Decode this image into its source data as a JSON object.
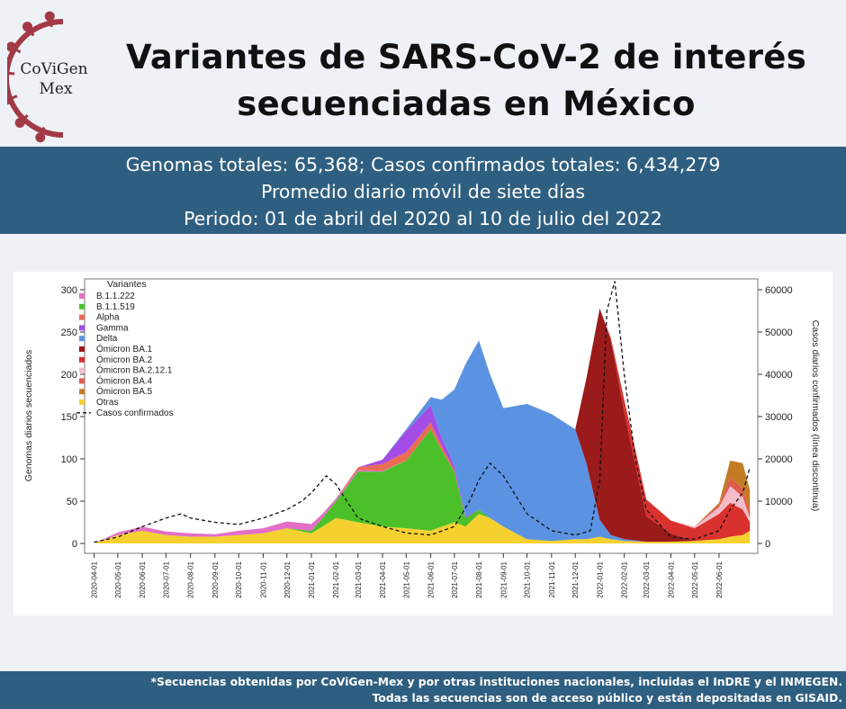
{
  "logo": {
    "line1": "CoViGen",
    "line2": "Mex",
    "accent": "#a23a45"
  },
  "header": {
    "title_line1": "Variantes de SARS-CoV-2 de interés",
    "title_line2": "secuenciadas en México"
  },
  "band": {
    "line1": "Genomas totales: 65,368; Casos confirmados totales: 6,434,279",
    "line2": "Promedio diario móvil de siete días",
    "line3": "Periodo: 01 de abril del 2020 al 10 de julio del 2022"
  },
  "footer": {
    "line1": "*Secuencias obtenidas por CoViGen-Mex y por otras instituciones nacionales, incluidas el InDRE y el INMEGEN.",
    "line2": "Todas las secuencias son de acceso público y están depositadas en GISAID."
  },
  "chart_data": {
    "type": "area",
    "ylabel": "Genomas diarios secuenciados",
    "y2label": "Casos diarios confirmados (línea discontinua)",
    "ylim": [
      0,
      300
    ],
    "y2lim": [
      0,
      60000
    ],
    "yticks": [
      0,
      50,
      100,
      150,
      200,
      250,
      300
    ],
    "y2ticks": [
      0,
      10000,
      20000,
      30000,
      40000,
      50000,
      60000
    ],
    "y2ticklabels": [
      "0",
      "10000",
      "20000",
      "30000",
      "40000",
      "50000",
      "60000"
    ],
    "legend_title": "Variantes",
    "legend_position": "top-left",
    "xticks": [
      "2020-04-01",
      "2020-05-01",
      "2020-06-01",
      "2020-07-01",
      "2020-08-01",
      "2020-09-01",
      "2020-10-01",
      "2020-11-01",
      "2020-12-01",
      "2021-01-01",
      "2021-02-01",
      "2021-03-01",
      "2021-04-01",
      "2021-05-01",
      "2021-06-01",
      "2021-07-01",
      "2021-08-01",
      "2021-09-01",
      "2021-10-01",
      "2021-11-01",
      "2021-12-01",
      "2022-01-01",
      "2022-02-01",
      "2022-03-01",
      "2022-04-01",
      "2022-05-01",
      "2022-06-01"
    ],
    "x": [
      "2020-04-01",
      "2020-05-01",
      "2020-06-01",
      "2020-07-01",
      "2020-08-01",
      "2020-09-01",
      "2020-10-01",
      "2020-11-01",
      "2020-12-01",
      "2021-01-01",
      "2021-01-15",
      "2021-02-01",
      "2021-03-01",
      "2021-04-01",
      "2021-05-01",
      "2021-06-01",
      "2021-06-15",
      "2021-07-01",
      "2021-07-15",
      "2021-08-01",
      "2021-08-15",
      "2021-09-01",
      "2021-10-01",
      "2021-11-01",
      "2021-12-01",
      "2021-12-15",
      "2022-01-01",
      "2022-01-15",
      "2022-02-01",
      "2022-03-01",
      "2022-04-01",
      "2022-05-01",
      "2022-06-01",
      "2022-06-15",
      "2022-07-01",
      "2022-07-10"
    ],
    "series": [
      {
        "name": "Otras",
        "color": "#f5d130",
        "values": [
          0,
          10,
          15,
          10,
          8,
          8,
          10,
          12,
          18,
          12,
          20,
          30,
          25,
          20,
          18,
          15,
          20,
          25,
          20,
          35,
          30,
          20,
          5,
          3,
          5,
          5,
          8,
          5,
          3,
          2,
          2,
          3,
          5,
          8,
          10,
          15
        ]
      },
      {
        "name": "B.1.1.519",
        "color": "#4cc02a",
        "values": [
          0,
          0,
          0,
          0,
          0,
          0,
          0,
          0,
          0,
          3,
          10,
          20,
          60,
          65,
          80,
          120,
          90,
          60,
          10,
          5,
          0,
          0,
          0,
          0,
          0,
          0,
          0,
          0,
          0,
          0,
          0,
          0,
          0,
          0,
          0,
          0
        ]
      },
      {
        "name": "B.1.1.222",
        "color": "#e26fc5",
        "values": [
          0,
          3,
          5,
          4,
          4,
          3,
          5,
          6,
          8,
          8,
          5,
          3,
          2,
          1,
          0,
          0,
          0,
          0,
          0,
          0,
          0,
          0,
          0,
          0,
          0,
          0,
          0,
          0,
          0,
          0,
          0,
          0,
          0,
          0,
          0,
          0
        ]
      },
      {
        "name": "Alpha",
        "color": "#ea6c55",
        "values": [
          0,
          0,
          0,
          0,
          0,
          0,
          0,
          0,
          0,
          0,
          0,
          0,
          3,
          8,
          10,
          8,
          5,
          2,
          0,
          0,
          0,
          0,
          0,
          0,
          0,
          0,
          0,
          0,
          0,
          0,
          0,
          0,
          0,
          0,
          0,
          0
        ]
      },
      {
        "name": "Gamma",
        "color": "#a44ce6",
        "values": [
          0,
          0,
          0,
          0,
          0,
          0,
          0,
          0,
          0,
          0,
          0,
          0,
          0,
          5,
          25,
          20,
          10,
          5,
          2,
          0,
          0,
          0,
          0,
          0,
          0,
          0,
          0,
          0,
          0,
          0,
          0,
          0,
          0,
          0,
          0,
          0
        ]
      },
      {
        "name": "Delta",
        "color": "#5b93e2",
        "values": [
          0,
          0,
          0,
          0,
          0,
          0,
          0,
          0,
          0,
          0,
          0,
          0,
          0,
          0,
          2,
          10,
          45,
          90,
          180,
          200,
          170,
          140,
          160,
          150,
          130,
          90,
          20,
          5,
          2,
          0,
          0,
          0,
          0,
          0,
          0,
          0
        ]
      },
      {
        "name": "Ómicron BA.1",
        "color": "#9b1b1b",
        "values": [
          0,
          0,
          0,
          0,
          0,
          0,
          0,
          0,
          0,
          0,
          0,
          0,
          0,
          0,
          0,
          0,
          0,
          0,
          0,
          0,
          0,
          0,
          0,
          0,
          0,
          100,
          250,
          230,
          150,
          30,
          10,
          0,
          0,
          0,
          0,
          0
        ]
      },
      {
        "name": "Ómicron BA.2",
        "color": "#d9322e",
        "values": [
          0,
          0,
          0,
          0,
          0,
          0,
          0,
          0,
          0,
          0,
          0,
          0,
          0,
          0,
          0,
          0,
          0,
          0,
          0,
          0,
          0,
          0,
          0,
          0,
          0,
          0,
          0,
          3,
          15,
          20,
          15,
          15,
          30,
          40,
          30,
          10
        ]
      },
      {
        "name": "Ómicron BA.2.12.1",
        "color": "#f3bcc8",
        "values": [
          0,
          0,
          0,
          0,
          0,
          0,
          0,
          0,
          0,
          0,
          0,
          0,
          0,
          0,
          0,
          0,
          0,
          0,
          0,
          0,
          0,
          0,
          0,
          0,
          0,
          0,
          0,
          0,
          0,
          0,
          0,
          2,
          8,
          20,
          15,
          5
        ]
      },
      {
        "name": "Ómicron BA.4",
        "color": "#df5c4c",
        "values": [
          0,
          0,
          0,
          0,
          0,
          0,
          0,
          0,
          0,
          0,
          0,
          0,
          0,
          0,
          0,
          0,
          0,
          0,
          0,
          0,
          0,
          0,
          0,
          0,
          0,
          0,
          0,
          0,
          0,
          0,
          0,
          0,
          3,
          10,
          10,
          8
        ]
      },
      {
        "name": "Ómicron BA.5",
        "color": "#c47c24",
        "values": [
          0,
          0,
          0,
          0,
          0,
          0,
          0,
          0,
          0,
          0,
          0,
          0,
          0,
          0,
          0,
          0,
          0,
          0,
          0,
          0,
          0,
          0,
          0,
          0,
          0,
          0,
          0,
          0,
          0,
          0,
          0,
          0,
          2,
          20,
          30,
          25
        ]
      }
    ],
    "legend_order": [
      "B.1.1.222",
      "B.1.1.519",
      "Alpha",
      "Gamma",
      "Delta",
      "Ómicron BA.1",
      "Ómicron BA.2",
      "Ómicron BA.2.12.1",
      "Ómicron BA.4",
      "Ómicron BA.5",
      "Otras"
    ],
    "cases": {
      "name": "Casos confirmados",
      "axis": "y2",
      "style": "dashed",
      "x": [
        "2020-04-01",
        "2020-05-01",
        "2020-06-01",
        "2020-07-01",
        "2020-07-20",
        "2020-08-01",
        "2020-09-01",
        "2020-10-01",
        "2020-11-01",
        "2020-12-01",
        "2020-12-20",
        "2021-01-01",
        "2021-01-20",
        "2021-02-01",
        "2021-03-01",
        "2021-04-01",
        "2021-05-01",
        "2021-06-01",
        "2021-07-01",
        "2021-07-20",
        "2021-08-01",
        "2021-08-15",
        "2021-09-01",
        "2021-10-01",
        "2021-11-01",
        "2021-12-01",
        "2021-12-20",
        "2022-01-01",
        "2022-01-10",
        "2022-01-20",
        "2022-02-01",
        "2022-02-15",
        "2022-03-01",
        "2022-04-01",
        "2022-05-01",
        "2022-06-01",
        "2022-06-15",
        "2022-07-01",
        "2022-07-10"
      ],
      "values": [
        300,
        1500,
        4000,
        6000,
        7000,
        6000,
        5000,
        4500,
        6000,
        8000,
        10000,
        12000,
        16000,
        14000,
        6000,
        4000,
        2500,
        2000,
        4000,
        10000,
        15000,
        19000,
        16000,
        7000,
        3000,
        2000,
        3000,
        15000,
        55000,
        62000,
        40000,
        20000,
        8000,
        1500,
        1000,
        3000,
        8000,
        12000,
        18000
      ]
    }
  }
}
